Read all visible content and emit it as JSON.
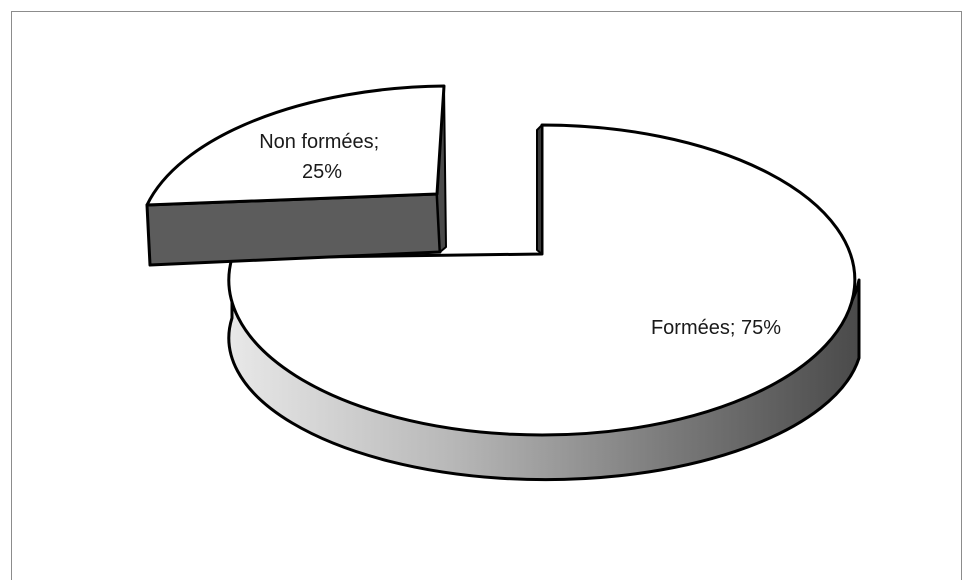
{
  "chart_data": {
    "type": "pie",
    "title": "",
    "style": "3d-exploded",
    "legend": "none",
    "slices": [
      {
        "name": "Formées",
        "value": 75,
        "label_line1": "Formées; 75%",
        "label_line2": "",
        "color": "#ffffff",
        "side_color": "#4d4d4d"
      },
      {
        "name": "Non formées",
        "value": 25,
        "label_line1": "Non formées;",
        "label_line2": "25%",
        "color": "#ffffff",
        "side_color": "#5c5c5c"
      }
    ]
  }
}
